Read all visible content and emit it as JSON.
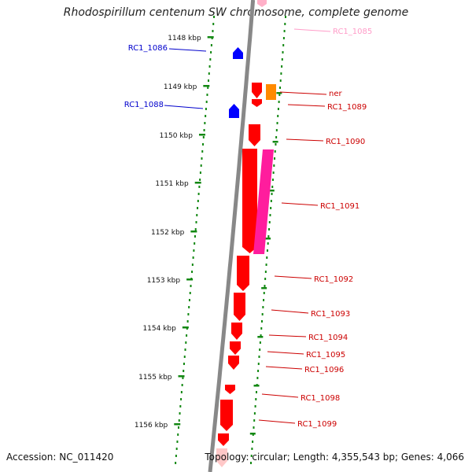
{
  "title": "Rhodospirillum centenum SW chromosome, complete genome",
  "footer": {
    "accession": "Accession: NC_011420",
    "topology": "Topology: circular; Length: 4,355,543 bp; Genes: 4,066"
  },
  "colors": {
    "backbone": "#888888",
    "tick": "#138813",
    "forward_gene": "#ff0000",
    "reverse_gene": "#0000ff",
    "pseudo_gene": "#ff1d9d",
    "orange_gene": "#ff8a00",
    "faded_label": "#ff9cc8",
    "red_label": "#cc0000",
    "blue_label": "#0000cc"
  },
  "map": {
    "scale_ticks": [
      {
        "label": "1148 kbp"
      },
      {
        "label": "1149 kbp"
      },
      {
        "label": "1150 kbp"
      },
      {
        "label": "1151 kbp"
      },
      {
        "label": "1152 kbp"
      },
      {
        "label": "1153 kbp"
      },
      {
        "label": "1154 kbp"
      },
      {
        "label": "1155 kbp"
      },
      {
        "label": "1156 kbp"
      }
    ],
    "gene_labels": [
      {
        "label": "RC1_1085",
        "color": "#ff9cc8",
        "side": "right"
      },
      {
        "label": "RC1_1086",
        "color": "#0000cc",
        "side": "left"
      },
      {
        "label": "ner",
        "color": "#cc0000",
        "side": "right"
      },
      {
        "label": "RC1_1088",
        "color": "#0000cc",
        "side": "left"
      },
      {
        "label": "RC1_1089",
        "color": "#cc0000",
        "side": "right"
      },
      {
        "label": "RC1_1090",
        "color": "#cc0000",
        "side": "right"
      },
      {
        "label": "RC1_1091",
        "color": "#cc0000",
        "side": "right"
      },
      {
        "label": "RC1_1092",
        "color": "#cc0000",
        "side": "right"
      },
      {
        "label": "RC1_1093",
        "color": "#cc0000",
        "side": "right"
      },
      {
        "label": "RC1_1094",
        "color": "#cc0000",
        "side": "right"
      },
      {
        "label": "RC1_1095",
        "color": "#cc0000",
        "side": "right"
      },
      {
        "label": "RC1_1096",
        "color": "#cc0000",
        "side": "right"
      },
      {
        "label": "RC1_1098",
        "color": "#cc0000",
        "side": "right"
      },
      {
        "label": "RC1_1099",
        "color": "#cc0000",
        "side": "right"
      }
    ]
  }
}
